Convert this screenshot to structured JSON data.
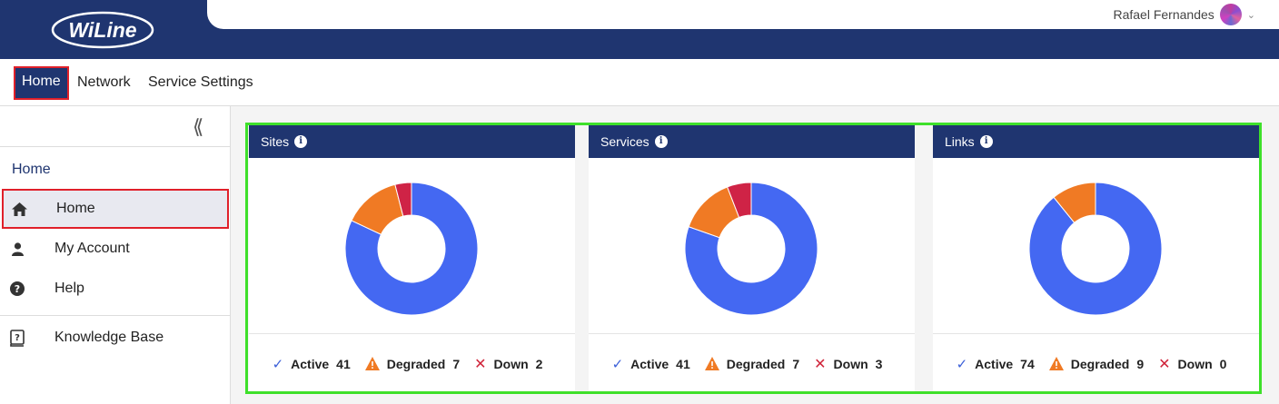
{
  "header": {
    "logo_text": "WiLine",
    "user_name": "Rafael Fernandes"
  },
  "nav": {
    "home": "Home",
    "network": "Network",
    "service_settings": "Service Settings"
  },
  "sidebar": {
    "section_title": "Home",
    "items": [
      {
        "label": "Home",
        "icon": "home-icon"
      },
      {
        "label": "My Account",
        "icon": "user-icon"
      },
      {
        "label": "Help",
        "icon": "help-icon"
      },
      {
        "label": "Knowledge Base",
        "icon": "book-icon"
      }
    ]
  },
  "colors": {
    "active": "#4468f2",
    "degraded": "#f07a24",
    "down": "#cf2346",
    "header": "#1f3570"
  },
  "cards": [
    {
      "title": "Sites",
      "active_label": "Active",
      "active": 41,
      "degraded_label": "Degraded",
      "degraded": 7,
      "down_label": "Down",
      "down": 2
    },
    {
      "title": "Services",
      "active_label": "Active",
      "active": 41,
      "degraded_label": "Degraded",
      "degraded": 7,
      "down_label": "Down",
      "down": 3
    },
    {
      "title": "Links",
      "active_label": "Active",
      "active": 74,
      "degraded_label": "Degraded",
      "degraded": 9,
      "down_label": "Down",
      "down": 0
    }
  ]
}
